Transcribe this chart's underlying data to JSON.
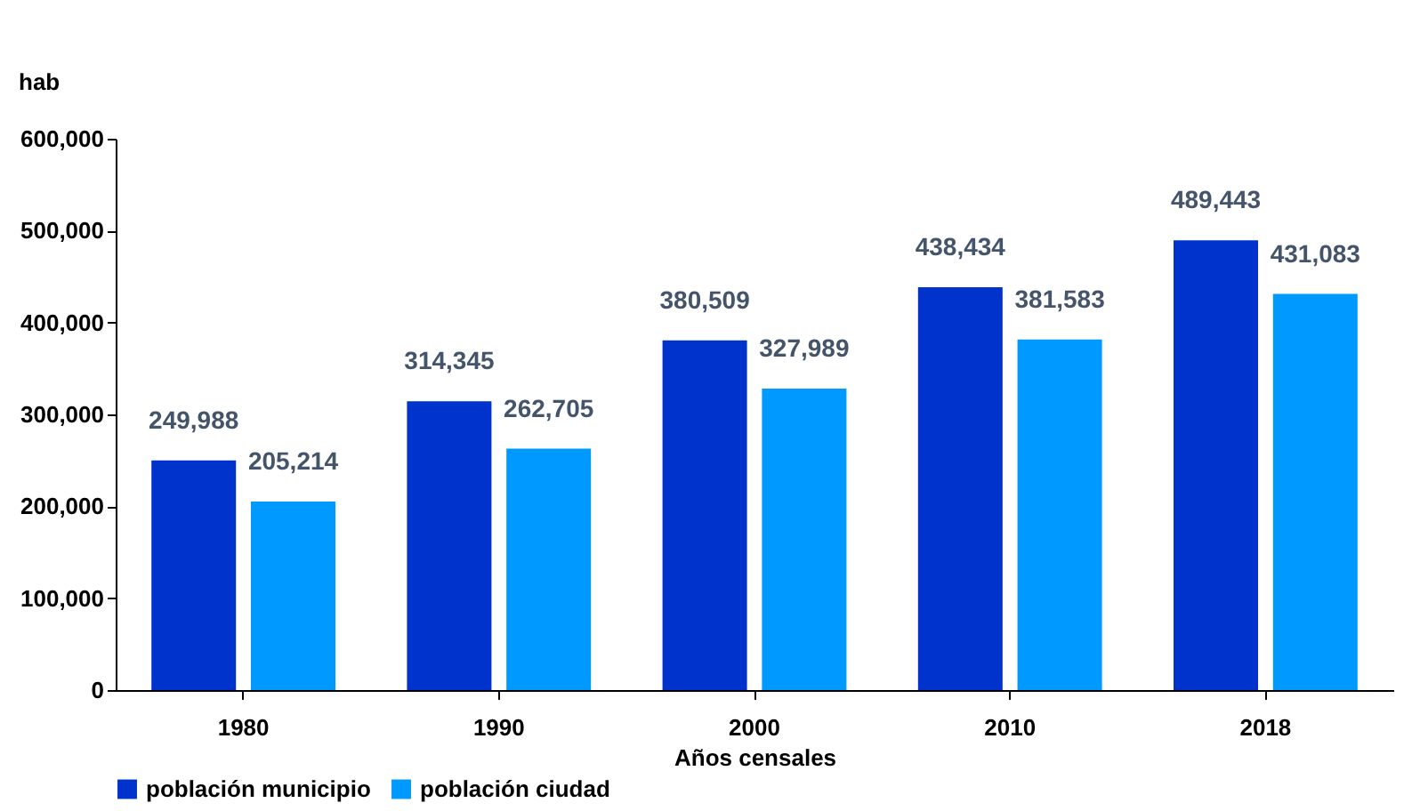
{
  "chart_data": {
    "type": "bar",
    "xlabel": "Años censales",
    "ylabel": "hab",
    "categories": [
      "1980",
      "1990",
      "2000",
      "2010",
      "2018"
    ],
    "series": [
      {
        "name": "población municipio",
        "color": "#0033cc",
        "values": [
          249988,
          314345,
          380509,
          438434,
          489443
        ],
        "value_labels": [
          "249,988",
          "314,345",
          "380,509",
          "438,434",
          "489,443"
        ]
      },
      {
        "name": "población ciudad",
        "color": "#0099ff",
        "values": [
          205214,
          262705,
          327989,
          381583,
          431083
        ],
        "value_labels": [
          "205,214",
          "262,705",
          "327,989",
          "381,583",
          "431,083"
        ]
      }
    ],
    "ylim": [
      0,
      600000
    ],
    "yticks": [
      0,
      {
        "value": 100000,
        "label": "100,000"
      },
      {
        "value": 200000,
        "label": "200,000"
      },
      {
        "value": 300000,
        "label": "300,000"
      },
      {
        "value": 400000,
        "label": "400,000"
      },
      {
        "value": 500000,
        "label": "500,000"
      },
      {
        "value": 600000,
        "label": "600,000"
      }
    ],
    "grid": false,
    "legend": "bottom"
  }
}
